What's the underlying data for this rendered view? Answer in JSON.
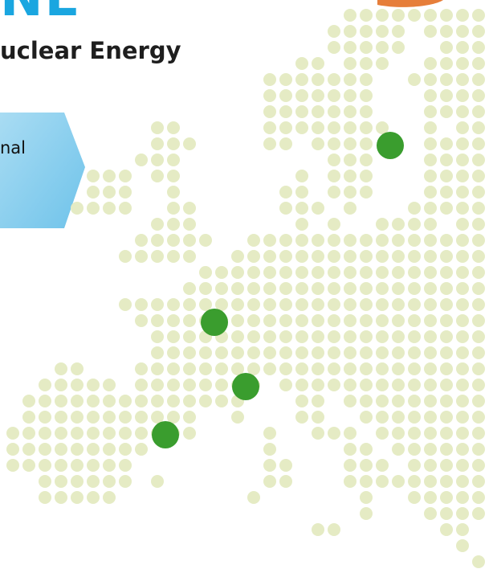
{
  "header": {
    "title": "NE",
    "subtitle": "uclear Energy"
  },
  "banner": {
    "text": "nal"
  }
}
